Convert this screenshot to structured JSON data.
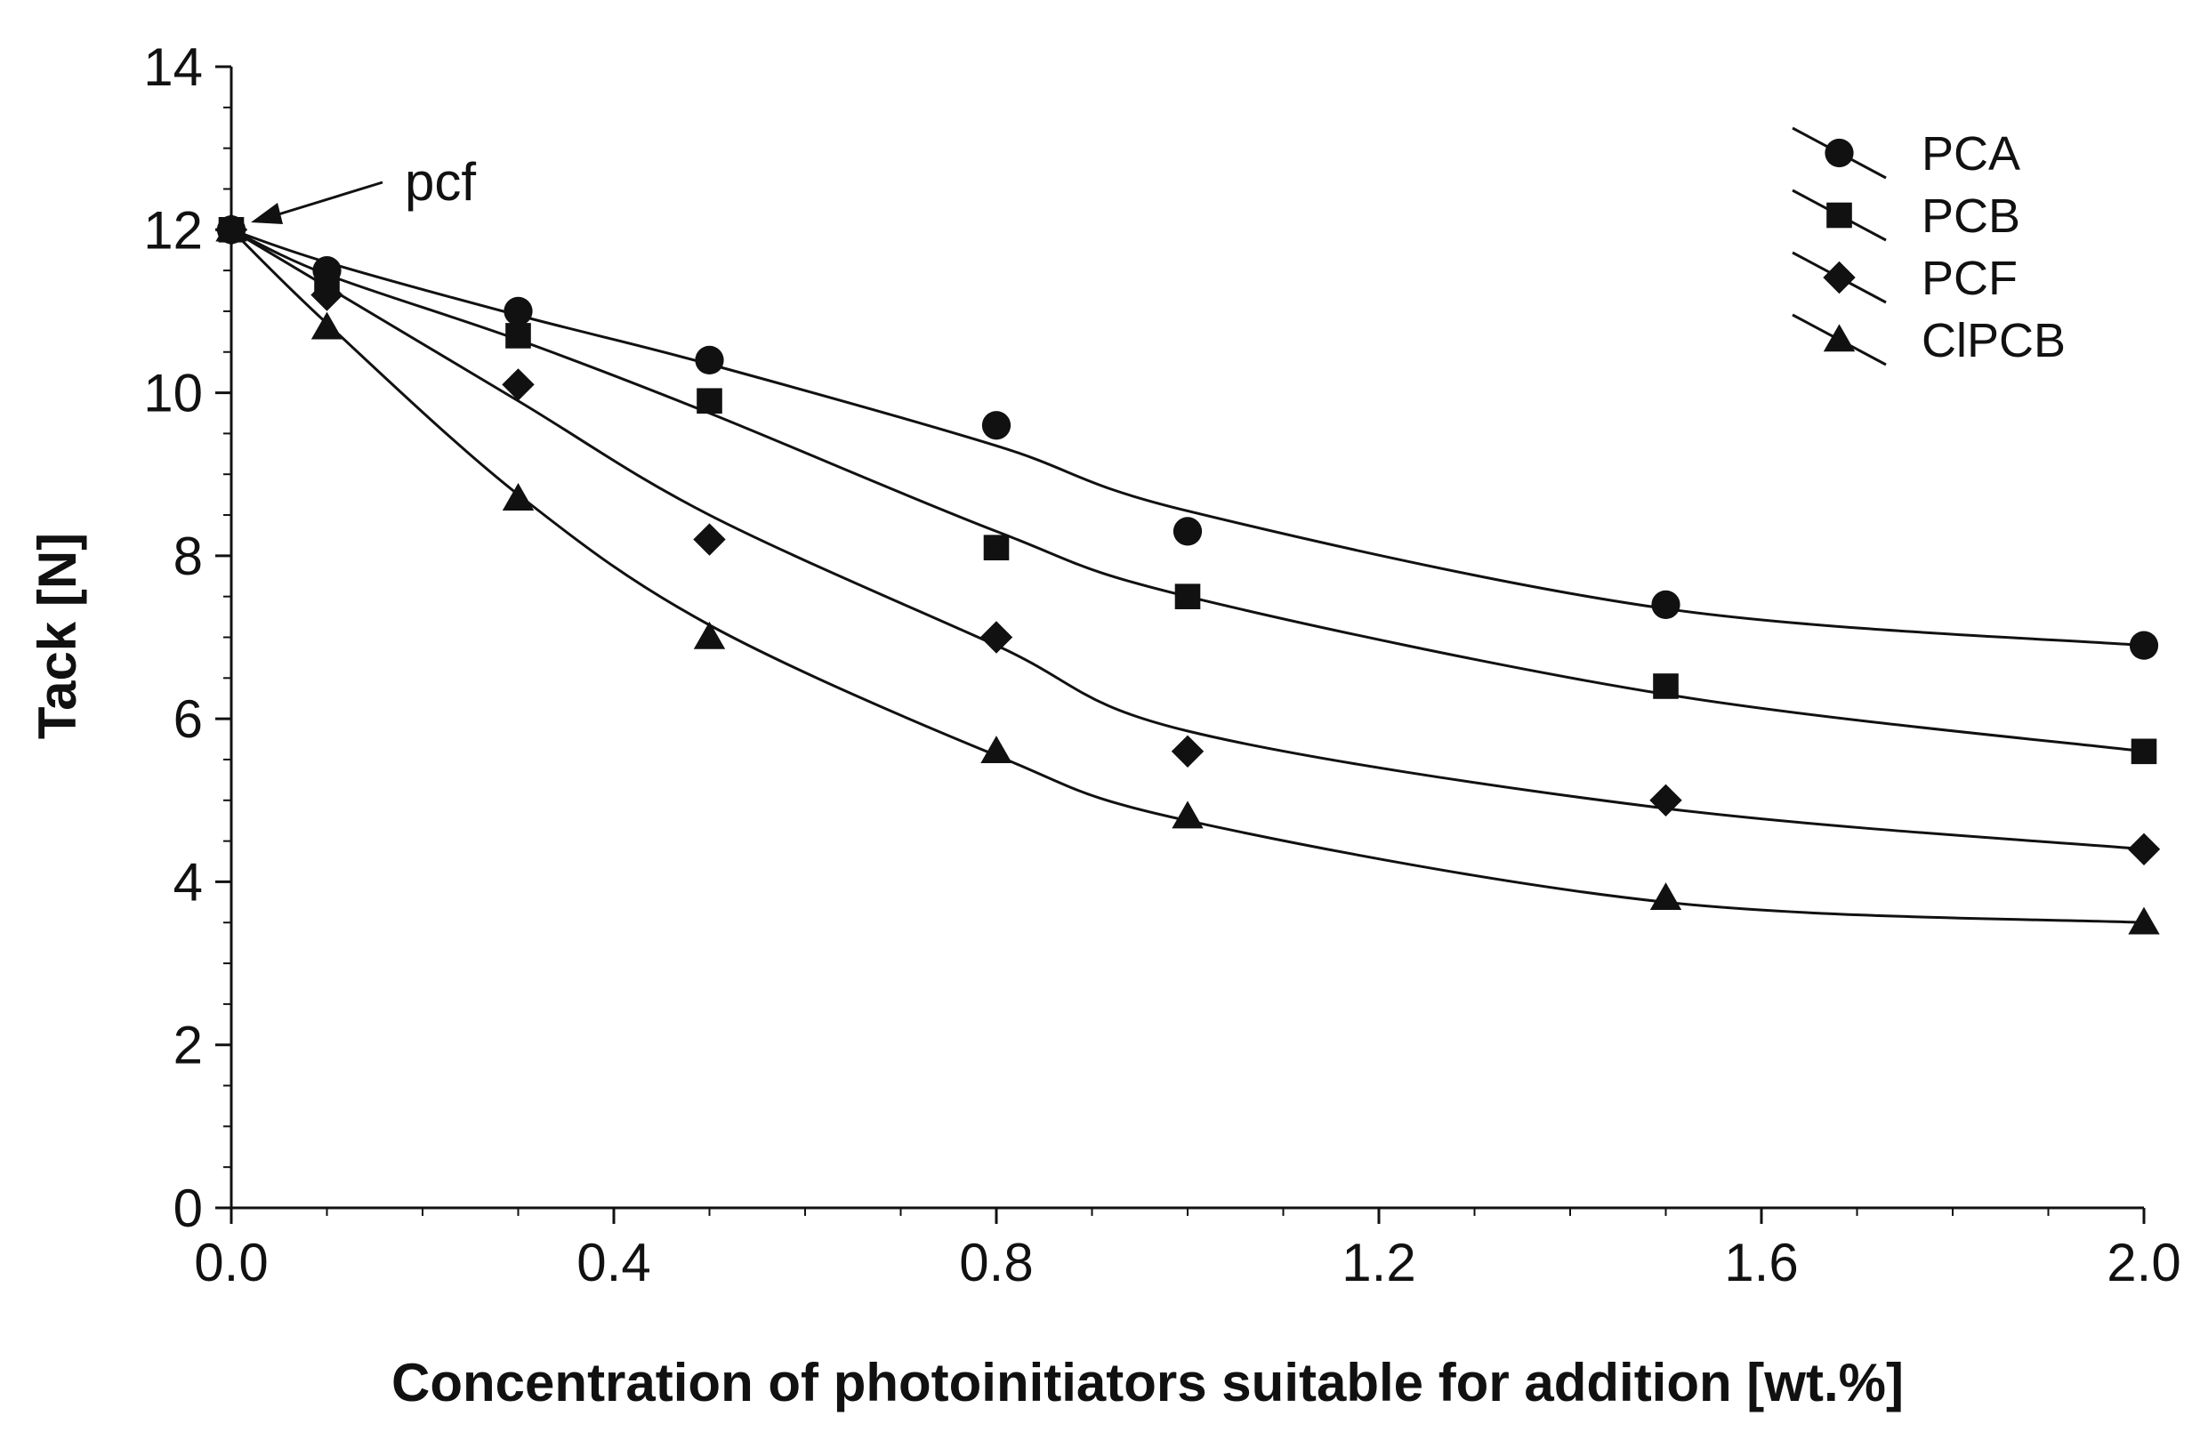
{
  "chart_data": {
    "type": "scatter",
    "title": "",
    "xlabel": "Concentration of photoinitiators suitable for addition [wt.%]",
    "ylabel": "Tack [N]",
    "xlim": [
      0,
      2.0
    ],
    "ylim": [
      0,
      14
    ],
    "x_ticks": [
      "0.0",
      "0.4",
      "0.8",
      "1.2",
      "1.6",
      "2.0"
    ],
    "y_ticks": [
      "0",
      "2",
      "4",
      "6",
      "8",
      "10",
      "12",
      "14"
    ],
    "grid": false,
    "legend_position": "top-right",
    "annotation": {
      "text": "pcf",
      "x": 0,
      "y": 12
    },
    "x": [
      0,
      0.1,
      0.3,
      0.5,
      0.8,
      1.0,
      1.5,
      2.0
    ],
    "series": [
      {
        "name": "PCA",
        "marker": "circle",
        "values": [
          12.0,
          11.5,
          11.0,
          10.4,
          9.6,
          8.3,
          7.4,
          6.9
        ],
        "fit": [
          12.0,
          11.6,
          10.95,
          10.35,
          9.35,
          8.55,
          7.35,
          6.9
        ]
      },
      {
        "name": "PCB",
        "marker": "square",
        "values": [
          12.0,
          11.4,
          10.7,
          9.9,
          8.1,
          7.5,
          6.4,
          5.6
        ],
        "fit": [
          12.0,
          11.45,
          10.65,
          9.75,
          8.3,
          7.5,
          6.3,
          5.6
        ]
      },
      {
        "name": "PCF",
        "marker": "diamond",
        "values": [
          12.0,
          11.2,
          10.1,
          8.2,
          7.0,
          5.6,
          5.0,
          4.4
        ],
        "fit": [
          12.0,
          11.3,
          9.9,
          8.5,
          6.9,
          5.85,
          4.9,
          4.4
        ]
      },
      {
        "name": "ClPCB",
        "marker": "triangle",
        "values": [
          12.0,
          10.8,
          8.7,
          7.0,
          5.6,
          4.8,
          3.8,
          3.5
        ],
        "fit": [
          12.0,
          10.85,
          8.75,
          7.15,
          5.55,
          4.75,
          3.75,
          3.5
        ]
      }
    ]
  }
}
